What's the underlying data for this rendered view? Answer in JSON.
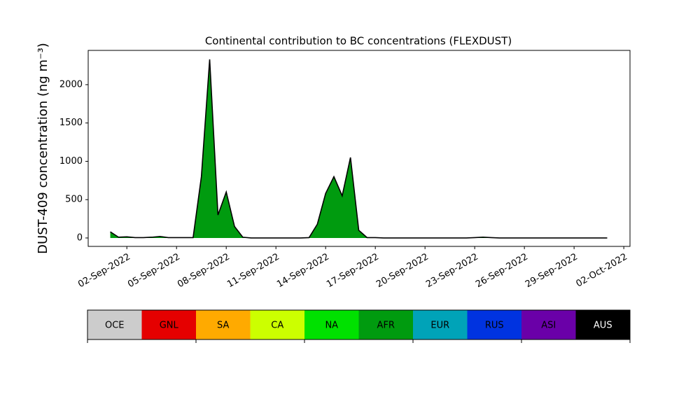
{
  "chart_data": {
    "type": "area",
    "title": "Continental contribution to BC concentrations (FLEXDUST)",
    "y_label": "DUST-409 concentration (ng m⁻³)",
    "x": [
      "2022-09-01T00:00",
      "2022-09-01T12:00",
      "2022-09-02T00:00",
      "2022-09-02T12:00",
      "2022-09-03T00:00",
      "2022-09-03T12:00",
      "2022-09-04T00:00",
      "2022-09-04T12:00",
      "2022-09-05T00:00",
      "2022-09-05T12:00",
      "2022-09-06T00:00",
      "2022-09-06T12:00",
      "2022-09-07T00:00",
      "2022-09-07T12:00",
      "2022-09-08T00:00",
      "2022-09-08T12:00",
      "2022-09-09T00:00",
      "2022-09-09T12:00",
      "2022-09-10T00:00",
      "2022-09-10T12:00",
      "2022-09-11T00:00",
      "2022-09-11T12:00",
      "2022-09-12T00:00",
      "2022-09-12T12:00",
      "2022-09-13T00:00",
      "2022-09-13T12:00",
      "2022-09-14T00:00",
      "2022-09-14T12:00",
      "2022-09-15T00:00",
      "2022-09-15T12:00",
      "2022-09-16T00:00",
      "2022-09-16T12:00",
      "2022-09-17T00:00",
      "2022-09-17T12:00",
      "2022-09-18T00:00",
      "2022-09-18T12:00",
      "2022-09-19T00:00",
      "2022-09-19T12:00",
      "2022-09-20T00:00",
      "2022-09-20T12:00",
      "2022-09-21T00:00",
      "2022-09-21T12:00",
      "2022-09-22T00:00",
      "2022-09-22T12:00",
      "2022-09-23T00:00",
      "2022-09-23T12:00",
      "2022-09-24T00:00",
      "2022-09-24T12:00",
      "2022-09-25T00:00",
      "2022-09-25T12:00",
      "2022-09-26T00:00",
      "2022-09-26T12:00",
      "2022-09-27T00:00",
      "2022-09-27T12:00",
      "2022-09-28T00:00",
      "2022-09-28T12:00",
      "2022-09-29T00:00",
      "2022-09-29T12:00",
      "2022-09-30T00:00",
      "2022-09-30T12:00",
      "2022-10-01T00:00"
    ],
    "series": [
      {
        "name": "AFR",
        "color": "#009b0f",
        "outline": "#000000",
        "values": [
          80,
          10,
          15,
          5,
          5,
          10,
          20,
          5,
          5,
          5,
          5,
          800,
          2330,
          300,
          600,
          150,
          10,
          0,
          0,
          0,
          0,
          0,
          0,
          0,
          5,
          180,
          580,
          800,
          550,
          1050,
          100,
          5,
          5,
          0,
          0,
          0,
          0,
          0,
          0,
          0,
          0,
          0,
          0,
          0,
          5,
          10,
          5,
          0,
          0,
          0,
          0,
          0,
          0,
          0,
          0,
          0,
          0,
          0,
          0,
          0,
          0
        ]
      }
    ],
    "xlim": [
      "2022-08-30T16:00",
      "2022-10-02T09:00"
    ],
    "xticks": [
      {
        "value": "2022-09-02T00:00",
        "label": "02-Sep-2022"
      },
      {
        "value": "2022-09-05T00:00",
        "label": "05-Sep-2022"
      },
      {
        "value": "2022-09-08T00:00",
        "label": "08-Sep-2022"
      },
      {
        "value": "2022-09-11T00:00",
        "label": "11-Sep-2022"
      },
      {
        "value": "2022-09-14T00:00",
        "label": "14-Sep-2022"
      },
      {
        "value": "2022-09-17T00:00",
        "label": "17-Sep-2022"
      },
      {
        "value": "2022-09-20T00:00",
        "label": "20-Sep-2022"
      },
      {
        "value": "2022-09-23T00:00",
        "label": "23-Sep-2022"
      },
      {
        "value": "2022-09-26T00:00",
        "label": "26-Sep-2022"
      },
      {
        "value": "2022-09-29T00:00",
        "label": "29-Sep-2022"
      },
      {
        "value": "2022-10-02T00:00",
        "label": "02-Oct-2022"
      }
    ],
    "ylim": [
      -110,
      2447
    ],
    "yticks": [
      0,
      500,
      1000,
      1500,
      2000
    ],
    "colorbar": [
      {
        "label": "OCE",
        "color": "#cccccc"
      },
      {
        "label": "GNL",
        "color": "#e50000"
      },
      {
        "label": "SA",
        "color": "#ffaa00"
      },
      {
        "label": "CA",
        "color": "#ccff00"
      },
      {
        "label": "NA",
        "color": "#00e100"
      },
      {
        "label": "AFR",
        "color": "#009b0f"
      },
      {
        "label": "EUR",
        "color": "#00a3b8"
      },
      {
        "label": "RUS",
        "color": "#0033e0"
      },
      {
        "label": "ASI",
        "color": "#6a00a8"
      },
      {
        "label": "AUS",
        "color": "#000000"
      }
    ]
  }
}
